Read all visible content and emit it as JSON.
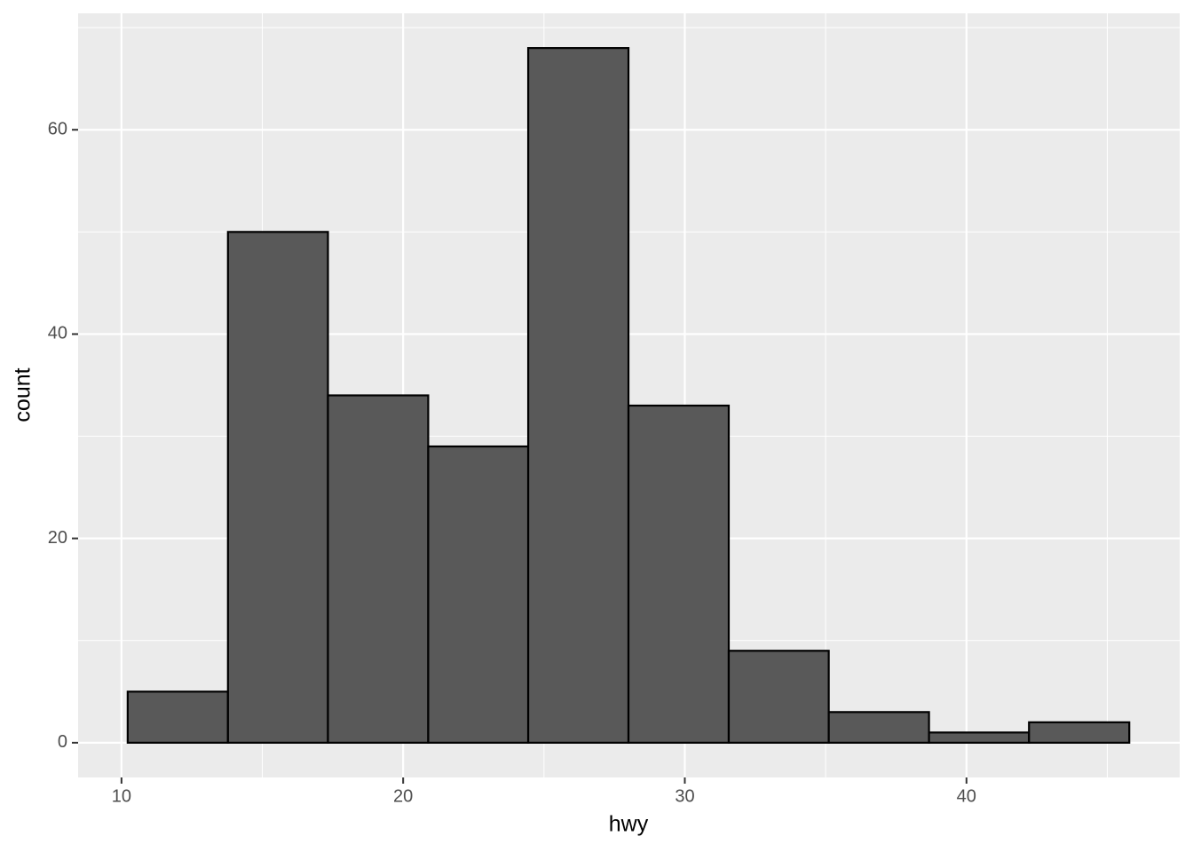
{
  "chart_data": {
    "type": "histogram",
    "x_label": "hwy",
    "y_label": "count",
    "bins": [
      10.22,
      13.78,
      17.33,
      20.89,
      24.44,
      28,
      31.56,
      35.11,
      38.67,
      42.22,
      45.78
    ],
    "values": [
      5,
      50,
      34,
      29,
      68,
      33,
      9,
      3,
      1,
      2
    ],
    "color": "#595959",
    "edge_color": "#000000",
    "background": "#ebebeb",
    "grid": true,
    "xlim": [
      8.46,
      47.57
    ],
    "xticks": [
      10,
      20,
      30,
      40
    ],
    "x_minor_breaks": [
      15,
      25,
      35,
      45
    ],
    "ylim": [
      -3.4,
      71.4
    ],
    "yticks": [
      0,
      20,
      40,
      60
    ],
    "y_minor_breaks": [
      10,
      30,
      50,
      70
    ]
  }
}
